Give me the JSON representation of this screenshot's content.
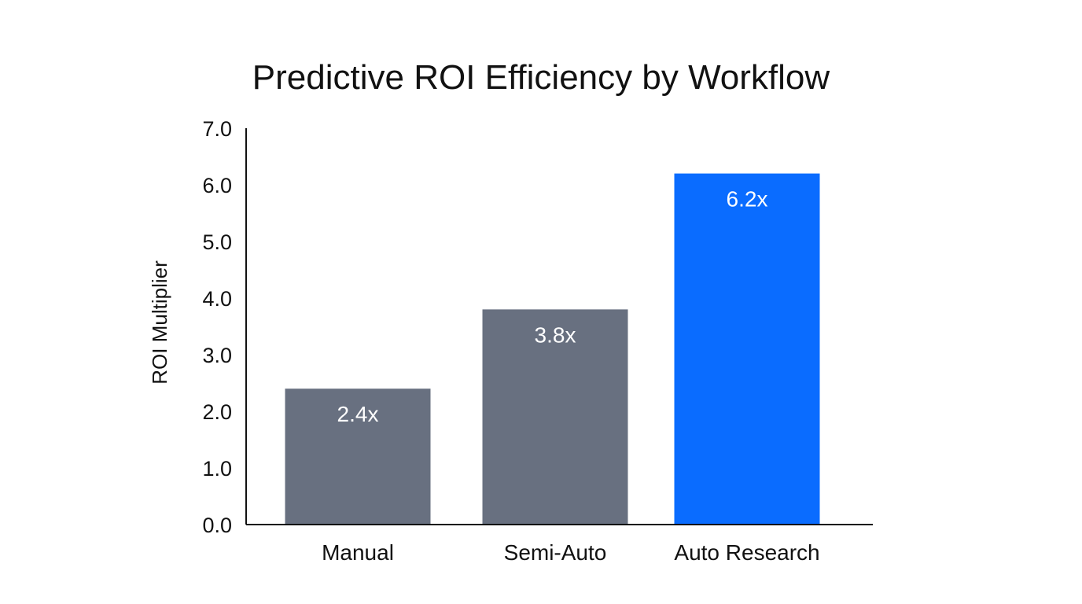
{
  "chart_data": {
    "type": "bar",
    "title": "Predictive ROI Efficiency by Workflow",
    "xlabel": "",
    "ylabel": "ROI Multiplier",
    "categories": [
      "Manual",
      "Semi-Auto",
      "Auto Research"
    ],
    "values": [
      2.4,
      3.8,
      6.2
    ],
    "data_labels": [
      "2.4x",
      "3.8x",
      "6.2x"
    ],
    "ylim": [
      0,
      7
    ],
    "yticks": [
      "0.0",
      "1.0",
      "2.0",
      "3.0",
      "4.0",
      "5.0",
      "6.0",
      "7.0"
    ],
    "grid": false,
    "colors": [
      "#687080",
      "#687080",
      "#0A6CFF"
    ]
  }
}
